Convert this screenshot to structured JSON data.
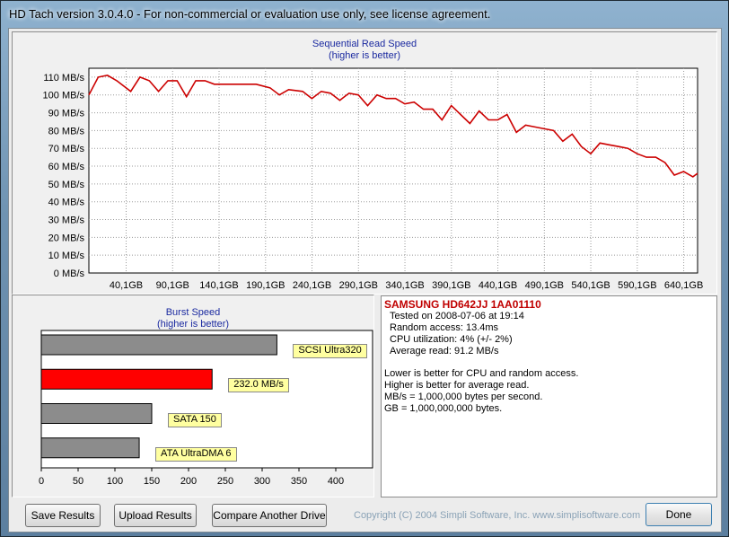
{
  "window": {
    "title": "HD Tach version 3.0.4.0  - For non-commercial or evaluation use only, see license agreement."
  },
  "sequential_chart": {
    "title": "Sequential Read Speed",
    "subtitle": "(higher is better)"
  },
  "burst_chart": {
    "title": "Burst Speed",
    "subtitle": "(higher is better)"
  },
  "info": {
    "drive": "SAMSUNG HD642JJ 1AA01110",
    "tested": "Tested on 2008-07-06 at 19:14",
    "random_access": "Random access: 13.4ms",
    "cpu": "CPU utilization: 4% (+/- 2%)",
    "avg_read": "Average read: 91.2 MB/s",
    "note1": "Lower is better for CPU and random access.",
    "note2": "Higher is better for average read.",
    "note3": "MB/s = 1,000,000 bytes per second.",
    "note4": "GB = 1,000,000,000 bytes."
  },
  "buttons": {
    "save": "Save Results",
    "upload": "Upload Results",
    "compare": "Compare Another Drive",
    "done": "Done"
  },
  "copyright": "Copyright (C) 2004 Simpli Software, Inc. www.simplisoftware.com",
  "colors": {
    "line": "#cc0000",
    "burst_bar": "#ff0000",
    "ref_bar": "#8c8c8c",
    "title_blue": "#1b2aa0"
  },
  "chart_data": [
    {
      "type": "line",
      "title": "Sequential Read Speed",
      "subtitle": "(higher is better)",
      "xlabel": "",
      "ylabel": "",
      "ylim": [
        0,
        115
      ],
      "xlim": [
        0,
        655
      ],
      "grid": true,
      "x_ticks": [
        "40,1GB",
        "90,1GB",
        "140,1GB",
        "190,1GB",
        "240,1GB",
        "290,1GB",
        "340,1GB",
        "390,1GB",
        "440,1GB",
        "490,1GB",
        "540,1GB",
        "590,1GB",
        "640,1GB"
      ],
      "x_tick_values": [
        40.1,
        90.1,
        140.1,
        190.1,
        240.1,
        290.1,
        340.1,
        390.1,
        440.1,
        490.1,
        540.1,
        590.1,
        640.1
      ],
      "y_ticks": [
        "0 MB/s",
        "10 MB/s",
        "20 MB/s",
        "30 MB/s",
        "40 MB/s",
        "50 MB/s",
        "60 MB/s",
        "70 MB/s",
        "80 MB/s",
        "90 MB/s",
        "100 MB/s",
        "110 MB/s"
      ],
      "y_tick_values": [
        0,
        10,
        20,
        30,
        40,
        50,
        60,
        70,
        80,
        90,
        100,
        110
      ],
      "series": [
        {
          "x": [
            0,
            10,
            20,
            30,
            45,
            55,
            65,
            75,
            85,
            95,
            105,
            115,
            125,
            135,
            150,
            165,
            180,
            195,
            205,
            215,
            230,
            240,
            250,
            260,
            270,
            280,
            290,
            300,
            310,
            320,
            330,
            340,
            350,
            360,
            370,
            380,
            390,
            400,
            410,
            420,
            430,
            440,
            450,
            460,
            470,
            480,
            490,
            500,
            510,
            520,
            530,
            540,
            550,
            560,
            570,
            580,
            590,
            600,
            610,
            620,
            630,
            640,
            650,
            655
          ],
          "y": [
            100,
            110,
            111,
            108,
            102,
            110,
            108,
            102,
            108,
            108,
            99,
            108,
            108,
            106,
            106,
            106,
            106,
            104,
            100,
            103,
            102,
            98,
            102,
            101,
            97,
            101,
            100,
            94,
            100,
            98,
            98,
            95,
            96,
            92,
            92,
            86,
            94,
            89,
            84,
            91,
            86,
            86,
            89,
            79,
            83,
            82,
            81,
            80,
            74,
            78,
            71,
            67,
            73,
            72,
            71,
            70,
            67,
            65,
            65,
            62,
            55,
            57,
            54,
            56
          ]
        }
      ]
    },
    {
      "type": "bar",
      "orientation": "horizontal",
      "title": "Burst Speed",
      "subtitle": "(higher is better)",
      "xlim": [
        0,
        450
      ],
      "x_ticks": [
        "0",
        "50",
        "100",
        "150",
        "200",
        "250",
        "300",
        "350",
        "400"
      ],
      "x_tick_values": [
        0,
        50,
        100,
        150,
        200,
        250,
        300,
        350,
        400
      ],
      "grid": false,
      "categories": [
        "SCSI Ultra320",
        "232.0 MB/s",
        "SATA 150",
        "ATA UltraDMA 6"
      ],
      "values": [
        320,
        232,
        150,
        133
      ],
      "highlight": [
        false,
        true,
        false,
        false
      ]
    }
  ]
}
